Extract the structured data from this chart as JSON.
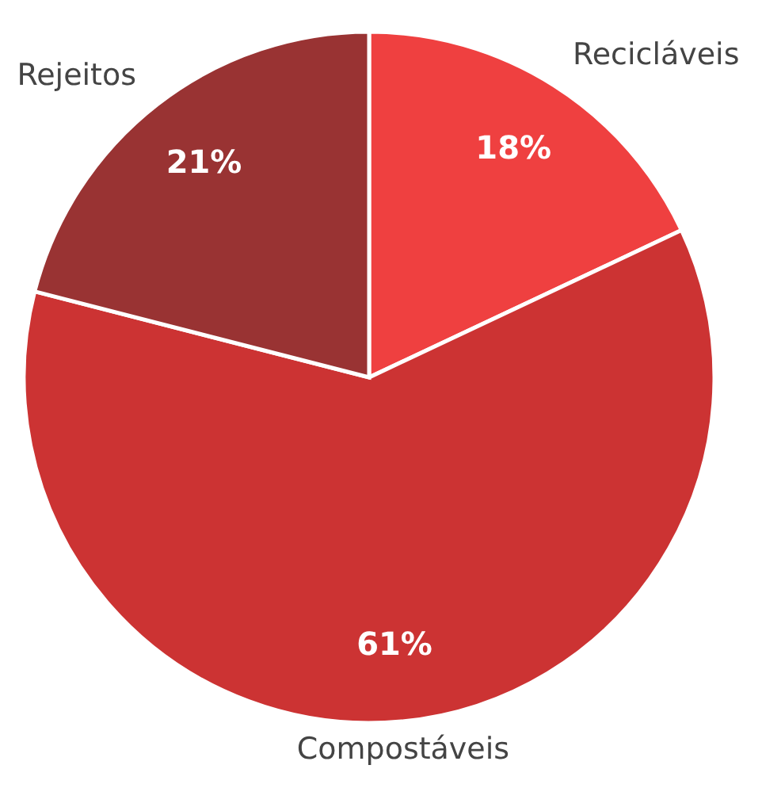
{
  "chart_data": {
    "type": "pie",
    "categories": [
      "Recicláveis",
      "Compostáveis",
      "Rejeitos"
    ],
    "values": [
      18,
      61,
      21
    ],
    "colors": [
      "#ef4040",
      "#cc3333",
      "#993333"
    ],
    "value_labels": [
      "18%",
      "61%",
      "21%"
    ]
  }
}
